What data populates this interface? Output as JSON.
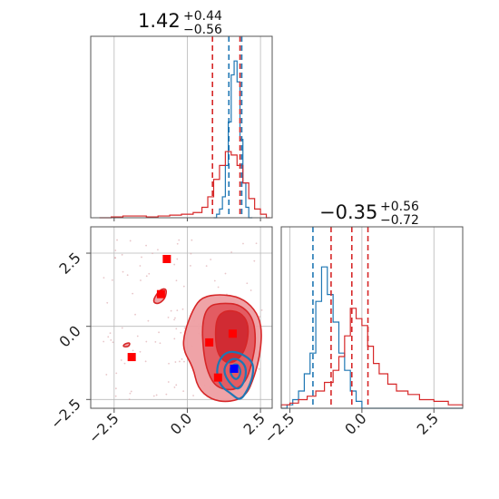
{
  "chart_data": [
    {
      "type": "histogram",
      "panel": "top-left",
      "title": {
        "main": "1.42",
        "sup": "+0.44",
        "sub": "−0.56"
      },
      "xlim": [
        -3.3,
        2.9
      ],
      "ylim": [
        0,
        1.0
      ],
      "grid": true,
      "series": [
        {
          "name": "",
          "color": "#1f77b4",
          "x": [
            0.9,
            1.0,
            1.1,
            1.2,
            1.3,
            1.4,
            1.5,
            1.6,
            1.7,
            1.8,
            1.9,
            2.0,
            2.1
          ],
          "values": [
            0.0,
            0.02,
            0.05,
            0.12,
            0.3,
            0.55,
            0.82,
            0.9,
            0.78,
            0.45,
            0.2,
            0.06,
            0.0
          ]
        },
        {
          "name": "",
          "color": "#d62728",
          "x": [
            -3.0,
            -2.6,
            -2.2,
            -1.8,
            -1.4,
            -1.0,
            -0.6,
            -0.2,
            0.2,
            0.5,
            0.7,
            0.9,
            1.1,
            1.3,
            1.5,
            1.7,
            1.9,
            2.1,
            2.3,
            2.5,
            2.7
          ],
          "values": [
            0.0,
            0.005,
            0.01,
            0.01,
            0.005,
            0.01,
            0.015,
            0.02,
            0.03,
            0.06,
            0.12,
            0.22,
            0.3,
            0.38,
            0.36,
            0.3,
            0.2,
            0.11,
            0.05,
            0.02,
            0.0
          ]
        }
      ],
      "vlines": [
        {
          "x": 0.86,
          "color": "#d62728"
        },
        {
          "x": 1.42,
          "color": "#1f77b4"
        },
        {
          "x": 1.8,
          "color": "#d62728"
        },
        {
          "x": 1.86,
          "color": "#1f77b4"
        }
      ]
    },
    {
      "type": "histogram",
      "panel": "bottom-right",
      "title": {
        "main": "−0.35",
        "sup": "+0.56",
        "sub": "−0.72"
      },
      "xlim": [
        -2.8,
        3.5
      ],
      "ylim": [
        0,
        1.0
      ],
      "xticks": [
        "−2.5",
        "0.0",
        "2.5"
      ],
      "grid": true,
      "series": [
        {
          "name": "",
          "color": "#1f77b4",
          "x": [
            -2.8,
            -2.6,
            -2.4,
            -2.2,
            -2.0,
            -1.8,
            -1.6,
            -1.4,
            -1.2,
            -1.0,
            -0.8,
            -0.6,
            -0.4,
            -0.2,
            0.0
          ],
          "values": [
            0.0,
            0.02,
            0.05,
            0.1,
            0.2,
            0.32,
            0.62,
            0.82,
            0.66,
            0.5,
            0.32,
            0.22,
            0.1,
            0.04,
            0.0
          ]
        },
        {
          "name": "",
          "color": "#d62728",
          "x": [
            -2.8,
            -2.5,
            -2.2,
            -1.9,
            -1.6,
            -1.3,
            -1.0,
            -0.8,
            -0.6,
            -0.4,
            -0.2,
            0.0,
            0.2,
            0.4,
            0.6,
            0.9,
            1.2,
            1.6,
            2.0,
            2.5,
            3.0,
            3.5
          ],
          "values": [
            0.02,
            0.03,
            0.05,
            0.07,
            0.1,
            0.15,
            0.22,
            0.3,
            0.42,
            0.58,
            0.52,
            0.48,
            0.36,
            0.26,
            0.2,
            0.14,
            0.1,
            0.08,
            0.05,
            0.04,
            0.02,
            0.01
          ]
        }
      ],
      "vlines": [
        {
          "x": -1.7,
          "color": "#1f77b4"
        },
        {
          "x": -1.07,
          "color": "#d62728"
        },
        {
          "x": -0.35,
          "color": "#d62728"
        },
        {
          "x": 0.21,
          "color": "#d62728"
        }
      ]
    },
    {
      "type": "contour",
      "panel": "bottom-left",
      "xlim": [
        -3.3,
        2.9
      ],
      "ylim": [
        -2.8,
        3.4
      ],
      "xticks": [
        "−2.5",
        "0.0",
        "2.5"
      ],
      "yticks": [
        "−2.5",
        "0.0",
        "2.5"
      ],
      "grid": true,
      "red_markers": [
        {
          "x": -0.7,
          "y": 2.3
        },
        {
          "x": -0.9,
          "y": 1.1
        },
        {
          "x": -1.9,
          "y": -1.05
        },
        {
          "x": 0.75,
          "y": -0.55
        },
        {
          "x": 1.55,
          "y": -0.25
        },
        {
          "x": 1.05,
          "y": -1.75
        }
      ],
      "blue_markers": [
        {
          "x": 1.6,
          "y": -1.45
        }
      ],
      "red_contours": [
        {
          "level": 0.95,
          "points": [
            [
              -0.1,
              -0.2
            ],
            [
              0.2,
              0.6
            ],
            [
              0.5,
              1.0
            ],
            [
              1.1,
              1.1
            ],
            [
              1.8,
              1.0
            ],
            [
              2.3,
              0.6
            ],
            [
              2.55,
              0.0
            ],
            [
              2.5,
              -0.9
            ],
            [
              2.3,
              -1.7
            ],
            [
              2.0,
              -2.4
            ],
            [
              1.4,
              -2.6
            ],
            [
              0.8,
              -2.5
            ],
            [
              0.35,
              -2.1
            ],
            [
              0.2,
              -1.4
            ],
            [
              -0.15,
              -0.8
            ]
          ]
        },
        {
          "level": 0.68,
          "points": [
            [
              0.5,
              0.1
            ],
            [
              0.7,
              0.7
            ],
            [
              1.2,
              0.8
            ],
            [
              1.8,
              0.75
            ],
            [
              2.25,
              0.3
            ],
            [
              2.35,
              -0.5
            ],
            [
              2.2,
              -1.3
            ],
            [
              2.0,
              -1.9
            ],
            [
              1.6,
              -2.2
            ],
            [
              1.0,
              -2.1
            ],
            [
              0.7,
              -1.6
            ],
            [
              0.55,
              -0.9
            ]
          ]
        },
        {
          "level": 0.39,
          "points": [
            [
              1.0,
              0.3
            ],
            [
              1.3,
              0.55
            ],
            [
              1.8,
              0.5
            ],
            [
              2.1,
              0.1
            ],
            [
              2.05,
              -0.6
            ],
            [
              1.8,
              -1.1
            ],
            [
              1.4,
              -1.3
            ],
            [
              1.05,
              -1.0
            ],
            [
              0.95,
              -0.4
            ]
          ]
        },
        {
          "level": 0.95,
          "points": [
            [
              -1.2,
              0.85
            ],
            [
              -0.95,
              1.25
            ],
            [
              -0.7,
              1.3
            ],
            [
              -0.75,
              0.95
            ],
            [
              -1.0,
              0.75
            ]
          ]
        },
        {
          "level": 0.95,
          "points": [
            [
              -2.15,
              -0.6
            ],
            [
              -1.95,
              -0.55
            ],
            [
              -2.0,
              -0.7
            ],
            [
              -2.2,
              -0.7
            ]
          ]
        }
      ],
      "blue_contours": [
        {
          "level": 0.95,
          "points": [
            [
              1.05,
              -1.2
            ],
            [
              1.35,
              -0.85
            ],
            [
              1.8,
              -0.9
            ],
            [
              2.25,
              -1.2
            ],
            [
              2.25,
              -1.7
            ],
            [
              2.05,
              -2.2
            ],
            [
              1.8,
              -2.55
            ],
            [
              1.5,
              -2.3
            ],
            [
              1.2,
              -2.1
            ],
            [
              1.0,
              -1.7
            ]
          ]
        },
        {
          "level": 0.68,
          "points": [
            [
              1.3,
              -1.3
            ],
            [
              1.6,
              -1.05
            ],
            [
              2.0,
              -1.3
            ],
            [
              2.0,
              -1.8
            ],
            [
              1.75,
              -2.2
            ],
            [
              1.45,
              -1.95
            ],
            [
              1.25,
              -1.6
            ]
          ]
        },
        {
          "level": 0.39,
          "points": [
            [
              1.45,
              -1.4
            ],
            [
              1.7,
              -1.25
            ],
            [
              1.85,
              -1.55
            ],
            [
              1.7,
              -1.85
            ],
            [
              1.5,
              -1.7
            ]
          ]
        }
      ]
    }
  ]
}
